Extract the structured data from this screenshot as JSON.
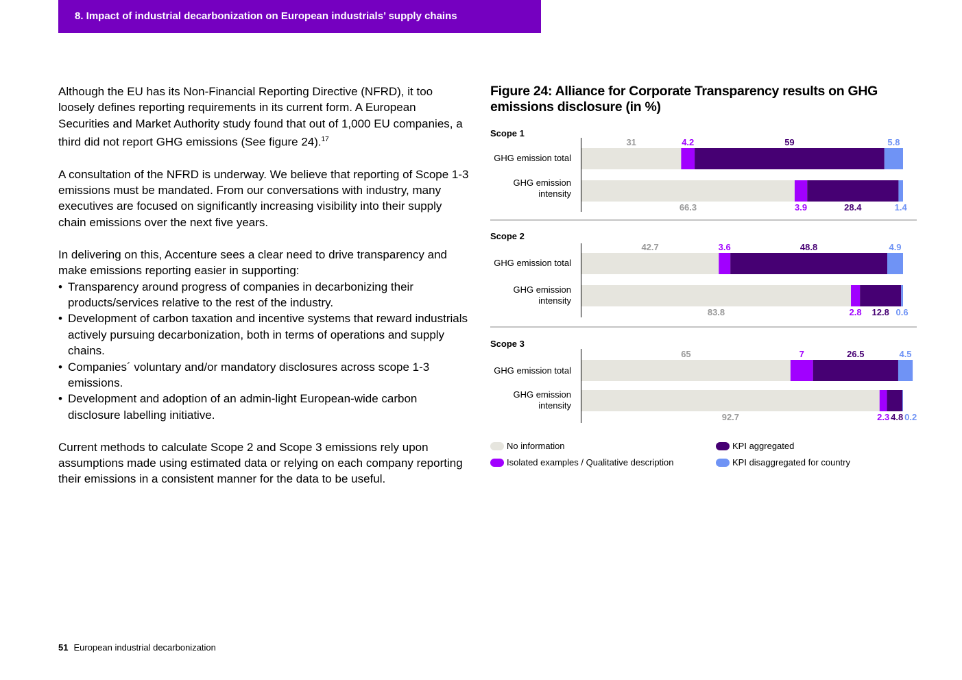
{
  "header": {
    "title": "8. Impact of industrial decarbonization on European industrials’ supply chains"
  },
  "body": {
    "p1": "Although the EU has its Non-Financial Reporting Directive (NFRD), it too loosely defines reporting requirements in its current form. A European Securities and Market Authority study found that out of 1,000 EU companies, a third did not report GHG emissions (See figure 24).",
    "p1_sup": "17",
    "p2": "A consultation of the NFRD is underway. We believe that reporting of Scope 1-3 emissions must be mandated. From our conversations with industry, many executives are focused on significantly increasing visibility into their supply chain emissions over the next five years.",
    "p3": "In delivering on this, Accenture sees a clear need to drive transparency and make emissions reporting easier in supporting:",
    "bullets": [
      "Transparency around progress of companies in decarbonizing their products/services relative to the rest of the industry.",
      "Development of carbon taxation and incentive systems that reward industrials actively pursuing decarbonization, both in terms of operations and supply chains.",
      "Companies´ voluntary and/or mandatory disclosures across scope 1-3 emissions.",
      "Development and adoption of an admin-light European-wide carbon disclosure labelling initiative."
    ],
    "p4": "Current methods to calculate Scope 2 and Scope 3 emissions rely upon assumptions made using estimated data or relying on each company reporting their emissions in a consistent manner for the data to be useful."
  },
  "footer": {
    "page": "51",
    "doc": "European industrial decarbonization"
  },
  "colors": {
    "no_info": "#e6e5de",
    "isolated": "#a100ff",
    "kpi_agg": "#460073",
    "kpi_dis": "#6f93f5",
    "header_bg": "#7500c0"
  },
  "chart_data": {
    "type": "bar",
    "stacked": true,
    "orientation": "horizontal",
    "title": "Figure 24: Alliance for Corporate Transparency results on GHG emissions disclosure (in %)",
    "xlim": [
      0,
      100
    ],
    "categories": [
      "GHG emission total",
      "GHG emission intensity"
    ],
    "series_names": [
      "No information",
      "Isolated examples / Qualitative description",
      "KPI aggregated",
      "KPI disaggregated for country"
    ],
    "groups": [
      {
        "name": "Scope 1",
        "rows": [
          {
            "label": "GHG emission total",
            "values": [
              31,
              4.2,
              59,
              5.8
            ]
          },
          {
            "label": "GHG emission intensity",
            "values": [
              66.3,
              3.9,
              28.4,
              1.4
            ]
          }
        ]
      },
      {
        "name": "Scope 2",
        "rows": [
          {
            "label": "GHG emission total",
            "values": [
              42.7,
              3.6,
              48.8,
              4.9
            ]
          },
          {
            "label": "GHG emission intensity",
            "values": [
              83.8,
              2.8,
              12.8,
              0.6
            ]
          }
        ]
      },
      {
        "name": "Scope 3",
        "rows": [
          {
            "label": "GHG emission total",
            "values": [
              65,
              7,
              26.5,
              4.5
            ]
          },
          {
            "label": "GHG emission intensity",
            "values": [
              92.7,
              2.3,
              4.8,
              0.2
            ]
          }
        ]
      }
    ],
    "legend": [
      {
        "label": "No information",
        "color": "#e6e5de"
      },
      {
        "label": "KPI aggregated",
        "color": "#460073"
      },
      {
        "label": "Isolated examples / Qualitative description",
        "color": "#a100ff"
      },
      {
        "label": "KPI disaggregated for country",
        "color": "#6f93f5"
      }
    ]
  }
}
